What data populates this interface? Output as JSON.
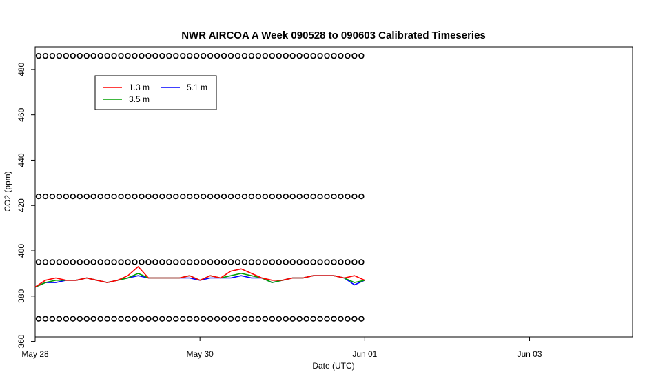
{
  "chart_data": {
    "type": "line",
    "title": "NWR AIRCOA A  Week 090528 to 090603  Calibrated Timeseries",
    "xlabel": "Date (UTC)",
    "ylabel": "CO2 (ppm)",
    "xlim": [
      "2009-05-28T00:00",
      "2009-06-04T06:00"
    ],
    "ylim": [
      362,
      490
    ],
    "x_ticks": [
      {
        "label": "May 28",
        "date": "2009-05-28"
      },
      {
        "label": "May 30",
        "date": "2009-05-30"
      },
      {
        "label": "Jun 01",
        "date": "2009-06-01"
      },
      {
        "label": "Jun 03",
        "date": "2009-06-03"
      }
    ],
    "y_ticks": [
      {
        "label": "360",
        "value": 360
      },
      {
        "label": "380",
        "value": 380
      },
      {
        "label": "400",
        "value": 400
      },
      {
        "label": "420",
        "value": 420
      },
      {
        "label": "440",
        "value": 440
      },
      {
        "label": "460",
        "value": 460
      },
      {
        "label": "480",
        "value": 480
      }
    ],
    "grid": false,
    "legend_position": "top-left",
    "series": [
      {
        "name": "1.3 m",
        "color": "#ff0000",
        "x": [
          "2009-05-28T00:00",
          "2009-05-28T03:00",
          "2009-05-28T06:00",
          "2009-05-28T09:00",
          "2009-05-28T12:00",
          "2009-05-28T15:00",
          "2009-05-28T18:00",
          "2009-05-28T21:00",
          "2009-05-29T00:00",
          "2009-05-29T03:00",
          "2009-05-29T06:00",
          "2009-05-29T09:00",
          "2009-05-29T12:00",
          "2009-05-29T15:00",
          "2009-05-29T18:00",
          "2009-05-29T21:00",
          "2009-05-30T00:00",
          "2009-05-30T03:00",
          "2009-05-30T06:00",
          "2009-05-30T09:00",
          "2009-05-30T12:00",
          "2009-05-30T15:00",
          "2009-05-30T18:00",
          "2009-05-30T21:00",
          "2009-05-31T00:00",
          "2009-05-31T03:00",
          "2009-05-31T06:00",
          "2009-05-31T09:00",
          "2009-05-31T12:00",
          "2009-05-31T15:00",
          "2009-05-31T18:00",
          "2009-05-31T21:00",
          "2009-06-01T00:00"
        ],
        "y": [
          384,
          387,
          388,
          387,
          387,
          388,
          387,
          386,
          387,
          389,
          393,
          388,
          388,
          388,
          388,
          389,
          387,
          389,
          388,
          391,
          392,
          390,
          388,
          387,
          387,
          388,
          388,
          389,
          389,
          389,
          388,
          389,
          387
        ]
      },
      {
        "name": "3.5 m",
        "color": "#00a000",
        "x": [
          "2009-05-28T00:00",
          "2009-05-28T03:00",
          "2009-05-28T06:00",
          "2009-05-28T09:00",
          "2009-05-28T12:00",
          "2009-05-28T15:00",
          "2009-05-28T18:00",
          "2009-05-28T21:00",
          "2009-05-29T00:00",
          "2009-05-29T03:00",
          "2009-05-29T06:00",
          "2009-05-29T09:00",
          "2009-05-29T12:00",
          "2009-05-29T15:00",
          "2009-05-29T18:00",
          "2009-05-29T21:00",
          "2009-05-30T00:00",
          "2009-05-30T03:00",
          "2009-05-30T06:00",
          "2009-05-30T09:00",
          "2009-05-30T12:00",
          "2009-05-30T15:00",
          "2009-05-30T18:00",
          "2009-05-30T21:00",
          "2009-05-31T00:00",
          "2009-05-31T03:00",
          "2009-05-31T06:00",
          "2009-05-31T09:00",
          "2009-05-31T12:00",
          "2009-05-31T15:00",
          "2009-05-31T18:00",
          "2009-05-31T21:00",
          "2009-06-01T00:00"
        ],
        "y": [
          384,
          386,
          387,
          387,
          387,
          388,
          387,
          386,
          387,
          388,
          390,
          388,
          388,
          388,
          388,
          389,
          387,
          389,
          388,
          389,
          390,
          389,
          388,
          386,
          387,
          388,
          388,
          389,
          389,
          389,
          388,
          386,
          387
        ]
      },
      {
        "name": "5.1 m",
        "color": "#0000ff",
        "x": [
          "2009-05-28T00:00",
          "2009-05-28T03:00",
          "2009-05-28T06:00",
          "2009-05-28T09:00",
          "2009-05-28T12:00",
          "2009-05-28T15:00",
          "2009-05-28T18:00",
          "2009-05-28T21:00",
          "2009-05-29T00:00",
          "2009-05-29T03:00",
          "2009-05-29T06:00",
          "2009-05-29T09:00",
          "2009-05-29T12:00",
          "2009-05-29T15:00",
          "2009-05-29T18:00",
          "2009-05-29T21:00",
          "2009-05-30T00:00",
          "2009-05-30T03:00",
          "2009-05-30T06:00",
          "2009-05-30T09:00",
          "2009-05-30T12:00",
          "2009-05-30T15:00",
          "2009-05-30T18:00",
          "2009-05-30T21:00",
          "2009-05-31T00:00",
          "2009-05-31T03:00",
          "2009-05-31T06:00",
          "2009-05-31T09:00",
          "2009-05-31T12:00",
          "2009-05-31T15:00",
          "2009-05-31T18:00",
          "2009-05-31T21:00",
          "2009-06-01T00:00"
        ],
        "y": [
          384,
          386,
          386,
          387,
          387,
          388,
          387,
          386,
          387,
          388,
          389,
          388,
          388,
          388,
          388,
          388,
          387,
          388,
          388,
          388,
          389,
          388,
          388,
          386,
          387,
          388,
          388,
          389,
          389,
          389,
          388,
          385,
          387
        ]
      }
    ],
    "reference_points": {
      "marker": "o",
      "levels": [
        486,
        424,
        395,
        370
      ],
      "x_start": "2009-05-28T01:00",
      "x_end": "2009-06-01T00:00",
      "interval_hours": 2
    }
  }
}
